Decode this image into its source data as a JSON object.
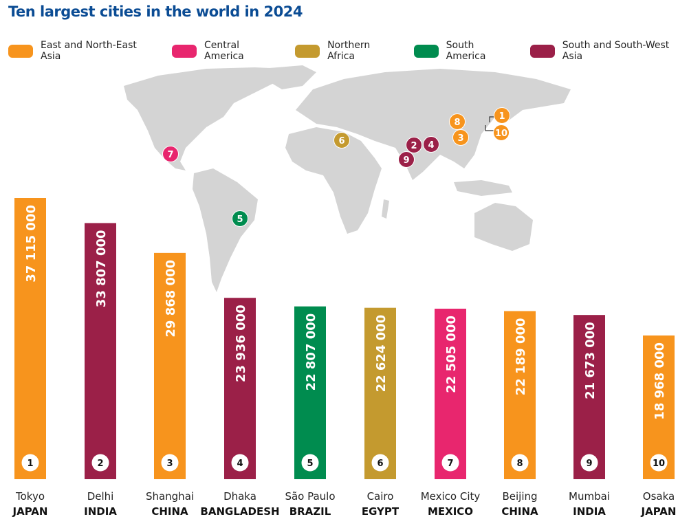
{
  "chart_data": {
    "type": "bar",
    "title": "Ten largest cities in the world in 2024",
    "legend": [
      {
        "name": "East and North-East Asia",
        "color": "#F7941D"
      },
      {
        "name": "Central America",
        "color": "#E8266E"
      },
      {
        "name": "Northern Africa",
        "color": "#C49A2F"
      },
      {
        "name": "South America",
        "color": "#008C4F"
      },
      {
        "name": "South and South-West Asia",
        "color": "#9B2048"
      }
    ],
    "legend_position": "top",
    "grid": false,
    "ylim": [
      0,
      37115000
    ],
    "bars": [
      {
        "rank": "1",
        "city": "Tokyo",
        "country": "JAPAN",
        "value": 37115000,
        "label": "37 115 000",
        "region": 0
      },
      {
        "rank": "2",
        "city": "Delhi",
        "country": "INDIA",
        "value": 33807000,
        "label": "33 807 000",
        "region": 4
      },
      {
        "rank": "3",
        "city": "Shanghai",
        "country": "CHINA",
        "value": 29868000,
        "label": "29 868 000",
        "region": 0
      },
      {
        "rank": "4",
        "city": "Dhaka",
        "country": "BANGLADESH",
        "value": 23936000,
        "label": "23 936 000",
        "region": 4
      },
      {
        "rank": "5",
        "city": "São Paulo",
        "country": "BRAZIL",
        "value": 22807000,
        "label": "22 807 000",
        "region": 3
      },
      {
        "rank": "6",
        "city": "Cairo",
        "country": "EGYPT",
        "value": 22624000,
        "label": "22 624 000",
        "region": 2
      },
      {
        "rank": "7",
        "city": "Mexico City",
        "country": "MEXICO",
        "value": 22505000,
        "label": "22 505 000",
        "region": 1
      },
      {
        "rank": "8",
        "city": "Beijing",
        "country": "CHINA",
        "value": 22189000,
        "label": "22 189 000",
        "region": 0
      },
      {
        "rank": "9",
        "city": "Mumbai",
        "country": "INDIA",
        "value": 21673000,
        "label": "21 673 000",
        "region": 4
      },
      {
        "rank": "10",
        "city": "Osaka",
        "country": "JAPAN",
        "value": 18968000,
        "label": "18 968 000",
        "region": 0
      }
    ]
  }
}
